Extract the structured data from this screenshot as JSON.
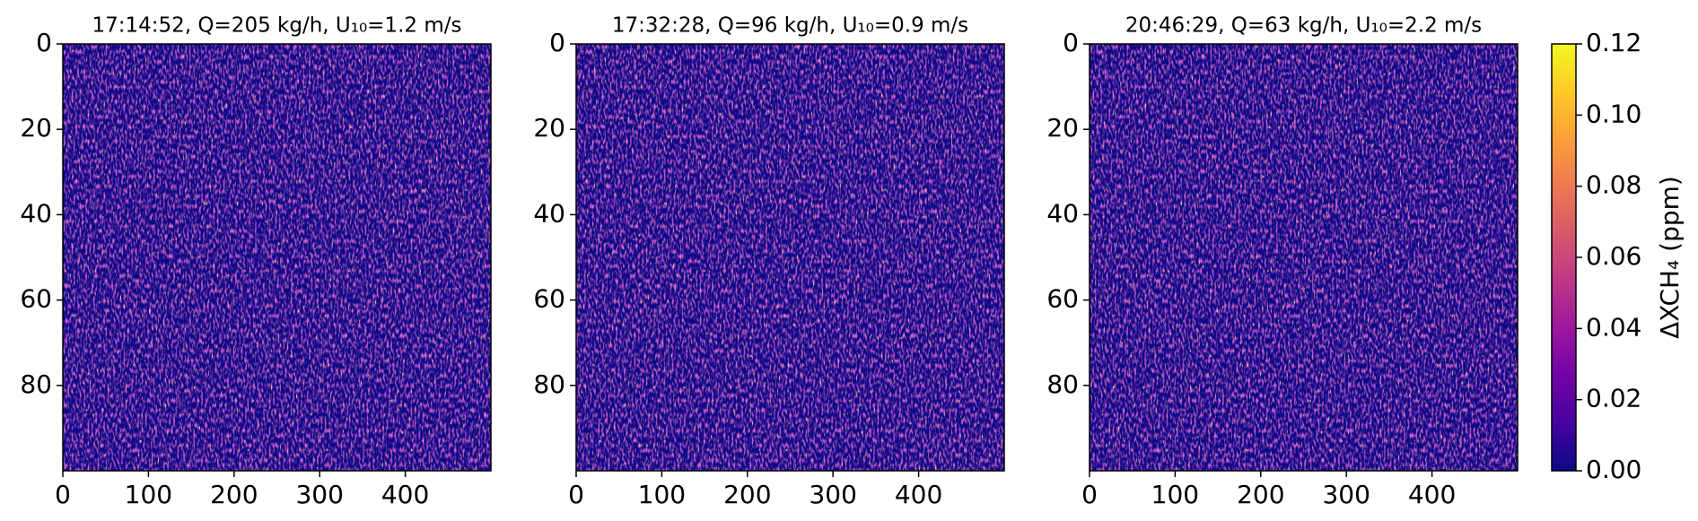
{
  "chart_data": [
    {
      "type": "heatmap",
      "title": "17:14:52, Q=205 kg/h, U₁₀=1.2 m/s",
      "xlim": [
        0,
        500
      ],
      "xticks": [
        0,
        100,
        200,
        300,
        400
      ],
      "ylim": [
        100,
        0
      ],
      "yticks": [
        0,
        20,
        40,
        60,
        80
      ],
      "colormap": "plasma"
    },
    {
      "type": "heatmap",
      "title": "17:32:28, Q=96 kg/h, U₁₀=0.9 m/s",
      "xlim": [
        0,
        500
      ],
      "xticks": [
        0,
        100,
        200,
        300,
        400
      ],
      "ylim": [
        100,
        0
      ],
      "yticks": [
        0,
        20,
        40,
        60,
        80
      ],
      "colormap": "plasma"
    },
    {
      "type": "heatmap",
      "title": "20:46:29, Q=63 kg/h, U₁₀=2.2 m/s",
      "xlim": [
        0,
        500
      ],
      "xticks": [
        0,
        100,
        200,
        300,
        400
      ],
      "ylim": [
        100,
        0
      ],
      "yticks": [
        0,
        20,
        40,
        60,
        80
      ],
      "colormap": "plasma"
    }
  ],
  "colorbar": {
    "label": "ΔXCH₄ (ppm)",
    "clim": [
      0,
      0.12
    ],
    "colormap": "plasma",
    "ticks": [
      {
        "value": 0,
        "label": "0.00"
      },
      {
        "value": 0.02,
        "label": "0.02"
      },
      {
        "value": 0.04,
        "label": "0.04"
      },
      {
        "value": 0.06,
        "label": "0.06"
      },
      {
        "value": 0.08,
        "label": "0.08"
      },
      {
        "value": 0.1,
        "label": "0.10"
      },
      {
        "value": 0.12,
        "label": "0.12"
      }
    ]
  }
}
